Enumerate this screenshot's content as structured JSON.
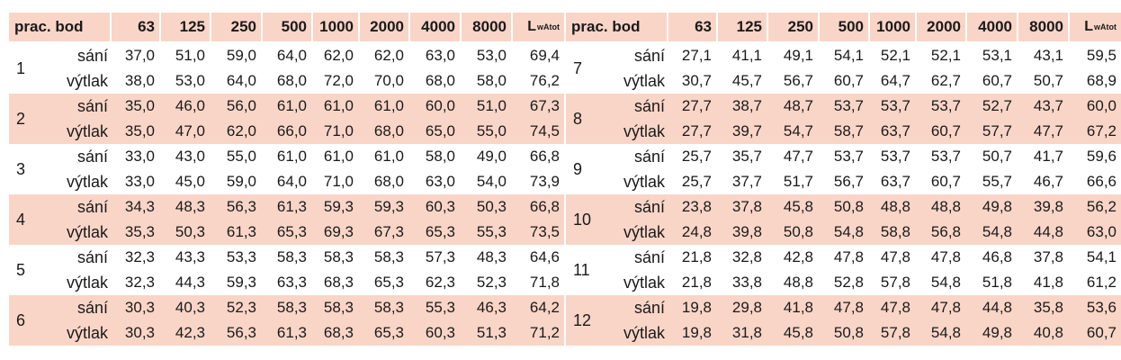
{
  "header": {
    "point_label": "prac. bod",
    "frequencies": [
      "63",
      "125",
      "250",
      "500",
      "1000",
      "2000",
      "4000",
      "8000"
    ],
    "total_main": "L",
    "total_sub": "wAtot"
  },
  "tables": [
    {
      "points": [
        {
          "id": "1",
          "shaded": false,
          "rows": [
            {
              "label": "sání",
              "values": [
                "37,0",
                "51,0",
                "59,0",
                "64,0",
                "62,0",
                "62,0",
                "63,0",
                "53,0",
                "69,4"
              ]
            },
            {
              "label": "výtlak",
              "values": [
                "38,0",
                "53,0",
                "64,0",
                "68,0",
                "72,0",
                "70,0",
                "68,0",
                "58,0",
                "76,2"
              ]
            }
          ]
        },
        {
          "id": "2",
          "shaded": true,
          "rows": [
            {
              "label": "sání",
              "values": [
                "35,0",
                "46,0",
                "56,0",
                "61,0",
                "61,0",
                "61,0",
                "60,0",
                "51,0",
                "67,3"
              ]
            },
            {
              "label": "výtlak",
              "values": [
                "35,0",
                "47,0",
                "62,0",
                "66,0",
                "71,0",
                "68,0",
                "65,0",
                "55,0",
                "74,5"
              ]
            }
          ]
        },
        {
          "id": "3",
          "shaded": false,
          "rows": [
            {
              "label": "sání",
              "values": [
                "33,0",
                "43,0",
                "55,0",
                "61,0",
                "61,0",
                "61,0",
                "58,0",
                "49,0",
                "66,8"
              ]
            },
            {
              "label": "výtlak",
              "values": [
                "33,0",
                "45,0",
                "59,0",
                "64,0",
                "71,0",
                "68,0",
                "63,0",
                "54,0",
                "73,9"
              ]
            }
          ]
        },
        {
          "id": "4",
          "shaded": true,
          "rows": [
            {
              "label": "sání",
              "values": [
                "34,3",
                "48,3",
                "56,3",
                "61,3",
                "59,3",
                "59,3",
                "60,3",
                "50,3",
                "66,8"
              ]
            },
            {
              "label": "výtlak",
              "values": [
                "35,3",
                "50,3",
                "61,3",
                "65,3",
                "69,3",
                "67,3",
                "65,3",
                "55,3",
                "73,5"
              ]
            }
          ]
        },
        {
          "id": "5",
          "shaded": false,
          "rows": [
            {
              "label": "sání",
              "values": [
                "32,3",
                "43,3",
                "53,3",
                "58,3",
                "58,3",
                "58,3",
                "57,3",
                "48,3",
                "64,6"
              ]
            },
            {
              "label": "výtlak",
              "values": [
                "32,3",
                "44,3",
                "59,3",
                "63,3",
                "68,3",
                "65,3",
                "62,3",
                "52,3",
                "71,8"
              ]
            }
          ]
        },
        {
          "id": "6",
          "shaded": true,
          "rows": [
            {
              "label": "sání",
              "values": [
                "30,3",
                "40,3",
                "52,3",
                "58,3",
                "58,3",
                "58,3",
                "55,3",
                "46,3",
                "64,2"
              ]
            },
            {
              "label": "výtlak",
              "values": [
                "30,3",
                "42,3",
                "56,3",
                "61,3",
                "68,3",
                "65,3",
                "60,3",
                "51,3",
                "71,2"
              ]
            }
          ]
        }
      ]
    },
    {
      "points": [
        {
          "id": "7",
          "shaded": false,
          "rows": [
            {
              "label": "sání",
              "values": [
                "27,1",
                "41,1",
                "49,1",
                "54,1",
                "52,1",
                "52,1",
                "53,1",
                "43,1",
                "59,5"
              ]
            },
            {
              "label": "výtlak",
              "values": [
                "30,7",
                "45,7",
                "56,7",
                "60,7",
                "64,7",
                "62,7",
                "60,7",
                "50,7",
                "68,9"
              ]
            }
          ]
        },
        {
          "id": "8",
          "shaded": true,
          "rows": [
            {
              "label": "sání",
              "values": [
                "27,7",
                "38,7",
                "48,7",
                "53,7",
                "53,7",
                "53,7",
                "52,7",
                "43,7",
                "60,0"
              ]
            },
            {
              "label": "výtlak",
              "values": [
                "27,7",
                "39,7",
                "54,7",
                "58,7",
                "63,7",
                "60,7",
                "57,7",
                "47,7",
                "67,2"
              ]
            }
          ]
        },
        {
          "id": "9",
          "shaded": false,
          "rows": [
            {
              "label": "sání",
              "values": [
                "25,7",
                "35,7",
                "47,7",
                "53,7",
                "53,7",
                "53,7",
                "50,7",
                "41,7",
                "59,6"
              ]
            },
            {
              "label": "výtlak",
              "values": [
                "25,7",
                "37,7",
                "51,7",
                "56,7",
                "63,7",
                "60,7",
                "55,7",
                "46,7",
                "66,6"
              ]
            }
          ]
        },
        {
          "id": "10",
          "shaded": true,
          "rows": [
            {
              "label": "sání",
              "values": [
                "23,8",
                "37,8",
                "45,8",
                "50,8",
                "48,8",
                "48,8",
                "49,8",
                "39,8",
                "56,2"
              ]
            },
            {
              "label": "výtlak",
              "values": [
                "24,8",
                "39,8",
                "50,8",
                "54,8",
                "58,8",
                "56,8",
                "54,8",
                "44,8",
                "63,0"
              ]
            }
          ]
        },
        {
          "id": "11",
          "shaded": false,
          "rows": [
            {
              "label": "sání",
              "values": [
                "21,8",
                "32,8",
                "42,8",
                "47,8",
                "47,8",
                "47,8",
                "46,8",
                "37,8",
                "54,1"
              ]
            },
            {
              "label": "výtlak",
              "values": [
                "21,8",
                "33,8",
                "48,8",
                "52,8",
                "57,8",
                "54,8",
                "51,8",
                "41,8",
                "61,2"
              ]
            }
          ]
        },
        {
          "id": "12",
          "shaded": true,
          "rows": [
            {
              "label": "sání",
              "values": [
                "19,8",
                "29,8",
                "41,8",
                "47,8",
                "47,8",
                "47,8",
                "44,8",
                "35,8",
                "53,6"
              ]
            },
            {
              "label": "výtlak",
              "values": [
                "19,8",
                "31,8",
                "45,8",
                "50,8",
                "57,8",
                "54,8",
                "49,8",
                "40,8",
                "60,7"
              ]
            }
          ]
        }
      ]
    }
  ]
}
